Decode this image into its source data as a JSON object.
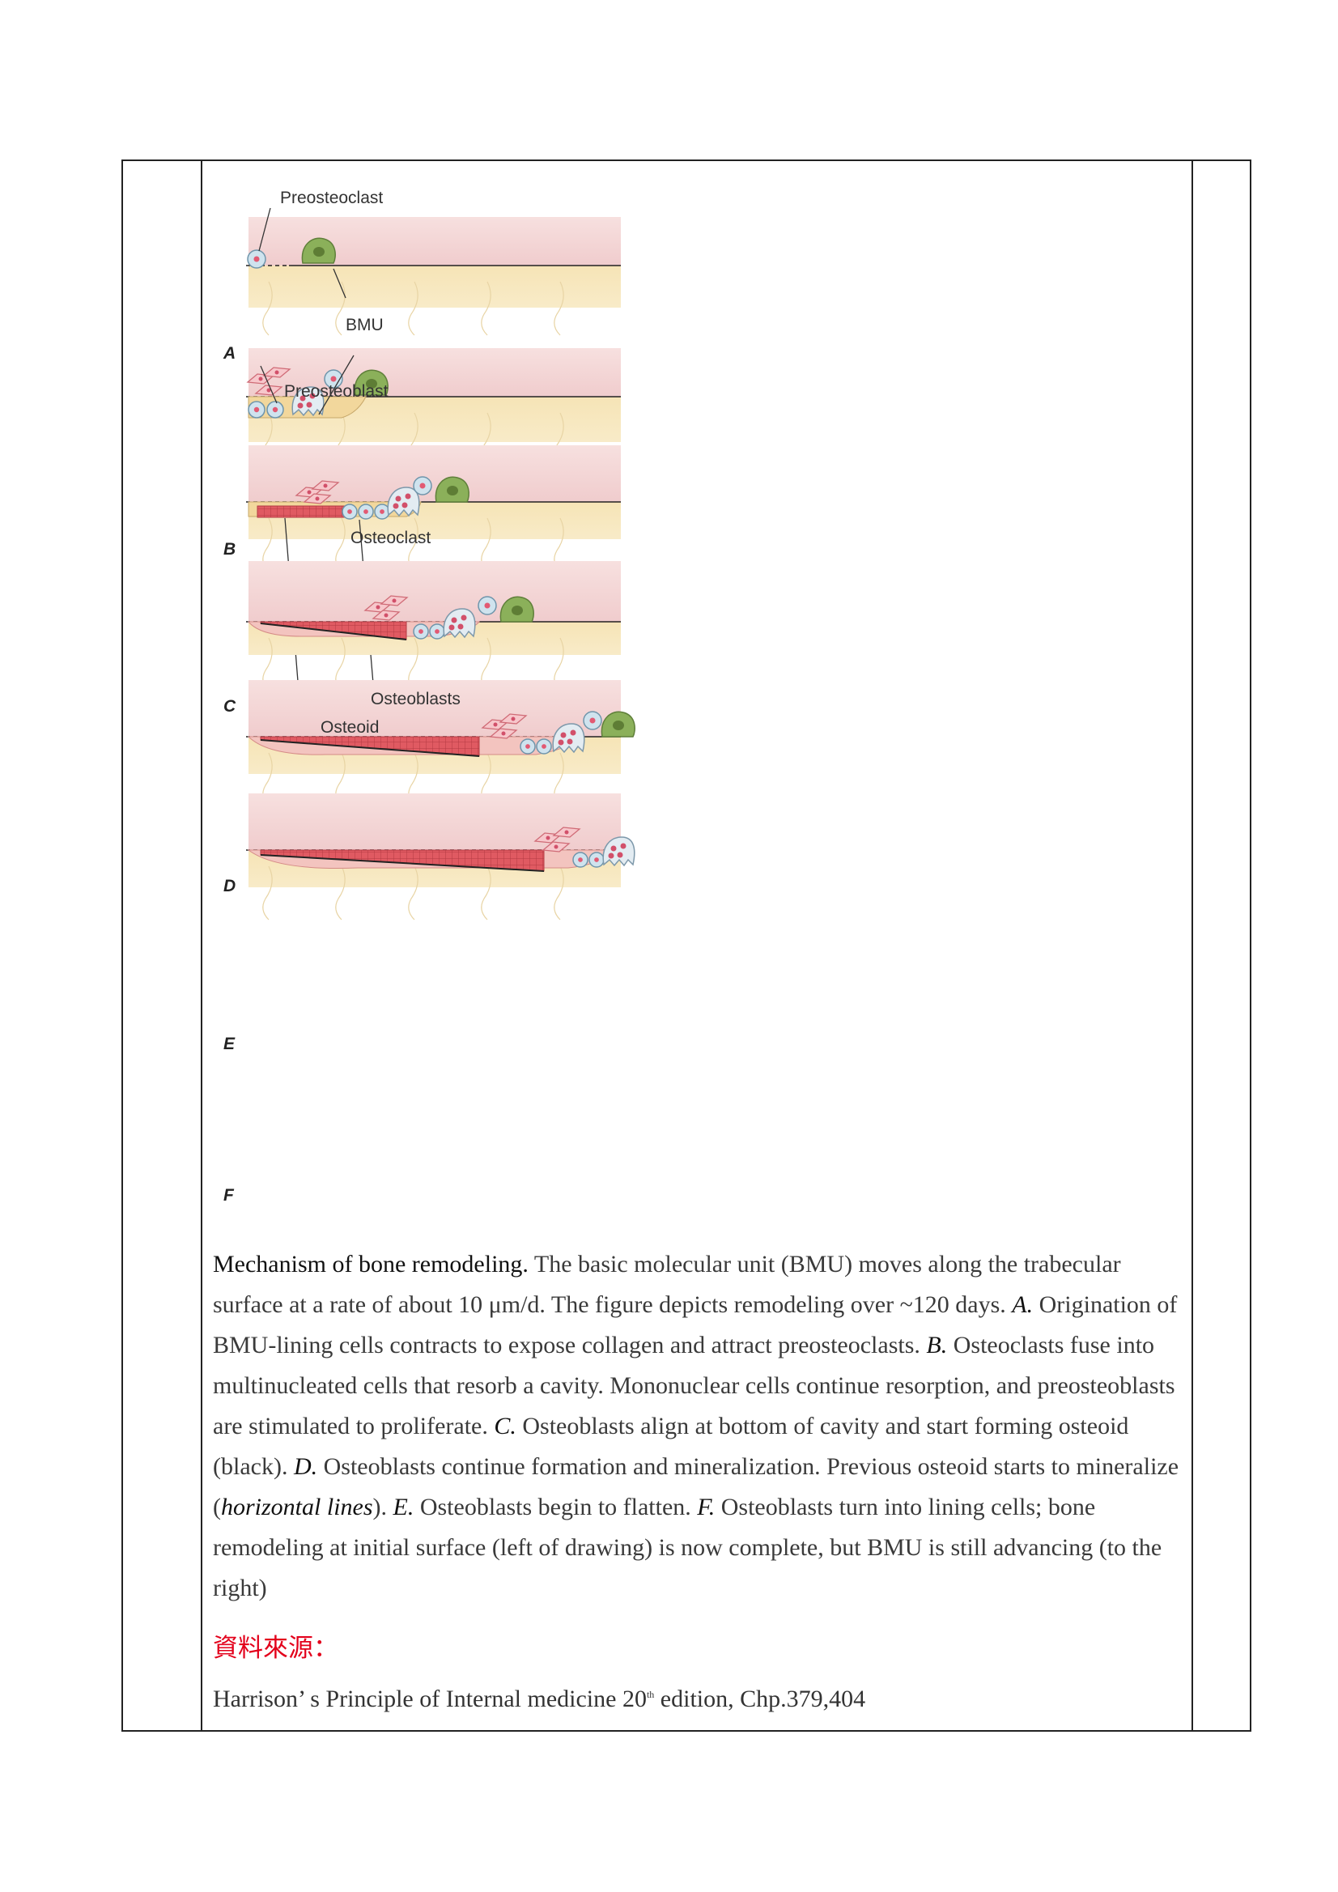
{
  "figure": {
    "labels": {
      "preosteoclast": "Preosteoclast",
      "bmu": "BMU",
      "preosteoblast": "Preosteoblast",
      "osteoclast": "Osteoclast",
      "osteoblasts": "Osteoblasts",
      "osteoid": "Osteoid"
    },
    "panels": [
      "A",
      "B",
      "C",
      "D",
      "E",
      "F"
    ],
    "colors": {
      "marrow": "#f3d4d4",
      "bone": "#f6e7bd",
      "osteoid": "#e0575f",
      "bmu_cell": "#8bb05a",
      "mononuclear": "#cfe3ee"
    }
  },
  "caption": {
    "lead": "Mechanism of bone remodeling.",
    "part1": " The basic molecular unit (BMU) moves along the trabecular surface at a rate of about 10 ",
    "mu": "μ",
    "part2": "m/d. The figure depicts remodeling over ~120 days. ",
    "a": "A.",
    "a_text": " Origination of BMU-lining cells contracts to expose collagen and attract preosteoclasts. ",
    "b": "B.",
    "b_text": " Osteoclasts fuse into multinucleated cells that resorb a cavity. Mononuclear cells continue resorption, and preosteoblasts are stimulated to proliferate. ",
    "c": "C.",
    "c_text": " Osteoblasts align at bottom of cavity and start forming osteoid (black). ",
    "d": "D.",
    "d_text": " Osteoblasts continue formation and mineralization. Previous osteoid starts to mineralize (",
    "horizontal": "horizontal lines",
    "d_text2": "). ",
    "e": "E.",
    "e_text": " Osteoblasts begin to flatten. ",
    "f": "F.",
    "f_text": " Osteoblasts turn into lining cells; bone remodeling at initial surface (left of drawing) is now complete, but BMU is still advancing (to the right)"
  },
  "source": {
    "label": "資料來源：",
    "text_before": "Harrison’ s Principle of Internal medicine 20",
    "sup": "th",
    "text_after": " edition, Chp.379,404"
  }
}
